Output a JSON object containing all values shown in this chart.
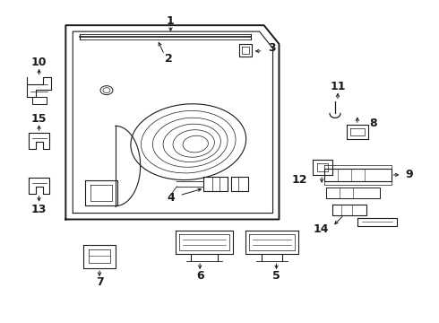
{
  "bg_color": "#ffffff",
  "line_color": "#1a1a1a",
  "figsize": [
    4.9,
    3.6
  ],
  "dpi": 100
}
